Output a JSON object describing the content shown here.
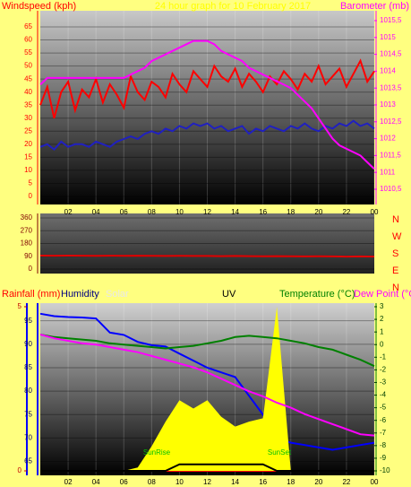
{
  "chart_data": [
    {
      "type": "line",
      "title": "24 hour graph for 10 February 2017",
      "ylabel": "Windspeed (kph)",
      "y2label": "Barometer (mb)",
      "xlim": [
        0,
        24
      ],
      "xticks": [
        {
          "value": 2,
          "label": "02"
        },
        {
          "value": 4,
          "label": "04"
        },
        {
          "value": 6,
          "label": "06"
        },
        {
          "value": 8,
          "label": "08"
        },
        10,
        12,
        14,
        16,
        18,
        20,
        22,
        {
          "value": 24,
          "label": "00"
        }
      ],
      "ylim": [
        0,
        65
      ],
      "yticks": [
        0,
        5,
        10,
        15,
        20,
        25,
        30,
        35,
        40,
        45,
        50,
        55,
        60,
        65
      ],
      "y2lim": [
        1010.5,
        1015.5
      ],
      "y2ticks": [
        {
          "value": 1010.5,
          "label": "1010,5"
        },
        1011,
        {
          "value": 1011.5,
          "label": "1011,5"
        },
        1012,
        {
          "value": 1012.5,
          "label": "1012,5"
        },
        1013,
        {
          "value": 1013.5,
          "label": "1013,5"
        },
        1014,
        {
          "value": 1014.5,
          "label": "1014,5"
        },
        1015,
        {
          "value": 1015.5,
          "label": "1015,5"
        }
      ],
      "x": [
        0,
        0.5,
        1,
        1.5,
        2,
        2.5,
        3,
        3.5,
        4,
        4.5,
        5,
        5.5,
        6,
        6.5,
        7,
        7.5,
        8,
        8.5,
        9,
        9.5,
        10,
        10.5,
        11,
        11.5,
        12,
        12.5,
        13,
        13.5,
        14,
        14.5,
        15,
        15.5,
        16,
        16.5,
        17,
        17.5,
        18,
        18.5,
        19,
        19.5,
        20,
        20.5,
        21,
        21.5,
        22,
        22.5,
        23,
        23.5,
        24
      ],
      "series": [
        {
          "color": "#ff0000",
          "axis": "y",
          "values": [
            35,
            42,
            30,
            40,
            44,
            33,
            41,
            38,
            45,
            36,
            43,
            39,
            34,
            46,
            40,
            37,
            44,
            42,
            38,
            47,
            43,
            40,
            48,
            45,
            42,
            50,
            46,
            44,
            49,
            42,
            47,
            44,
            40,
            46,
            43,
            48,
            45,
            41,
            47,
            44,
            50,
            43,
            46,
            49,
            42,
            47,
            52,
            44,
            48
          ]
        },
        {
          "color": "#2020c0",
          "axis": "y",
          "values": [
            19,
            20,
            18,
            21,
            19,
            20,
            20,
            19,
            21,
            20,
            19,
            21,
            22,
            23,
            22,
            24,
            25,
            24,
            26,
            25,
            27,
            26,
            28,
            27,
            28,
            26,
            27,
            25,
            26,
            27,
            24,
            26,
            25,
            27,
            26,
            25,
            27,
            26,
            28,
            26,
            25,
            27,
            26,
            28,
            27,
            29,
            27,
            28,
            26
          ]
        },
        {
          "color": "#ff00ff",
          "axis": "y2",
          "values": [
            1013.6,
            1013.8,
            1013.8,
            1013.8,
            1013.8,
            1013.8,
            1013.8,
            1013.8,
            1013.8,
            1013.8,
            1013.8,
            1013.8,
            1013.8,
            1013.9,
            1014,
            1014.1,
            1014.3,
            1014.4,
            1014.5,
            1014.6,
            1014.7,
            1014.8,
            1014.9,
            1014.9,
            1014.9,
            1014.8,
            1014.6,
            1014.5,
            1014.4,
            1014.3,
            1014.1,
            1014,
            1013.9,
            1013.8,
            1013.7,
            1013.6,
            1013.5,
            1013.3,
            1013.1,
            1012.9,
            1012.6,
            1012.3,
            1012,
            1011.8,
            1011.7,
            1011.6,
            1011.5,
            1011.3,
            1011.1
          ]
        }
      ]
    },
    {
      "type": "line",
      "xlim": [
        0,
        24
      ],
      "ylim": [
        0,
        360
      ],
      "yticks": [
        0,
        90,
        180,
        270,
        360
      ],
      "direction_labels": [
        "N",
        "W",
        "S",
        "E",
        "N"
      ],
      "x": [
        0,
        1,
        2,
        3,
        4,
        5,
        6,
        7,
        8,
        9,
        10,
        11,
        12,
        13,
        14,
        15,
        16,
        17,
        18,
        19,
        20,
        21,
        22,
        23,
        24
      ],
      "series": [
        {
          "color": "#e00000",
          "axis": "y",
          "values": [
            95,
            94,
            95,
            94,
            93,
            94,
            93,
            94,
            93,
            92,
            93,
            92,
            92,
            91,
            92,
            91,
            90,
            91,
            90,
            89,
            90,
            89,
            88,
            89,
            88
          ]
        }
      ]
    },
    {
      "type": "line",
      "xlim": [
        0,
        24
      ],
      "xticks": [
        {
          "value": 2,
          "label": "02"
        },
        {
          "value": 4,
          "label": "04"
        },
        {
          "value": 6,
          "label": "06"
        },
        {
          "value": 8,
          "label": "08"
        },
        10,
        12,
        14,
        16,
        18,
        20,
        22,
        {
          "value": 24,
          "label": "00"
        }
      ],
      "ylim": [
        63,
        98
      ],
      "yticks": [
        65,
        70,
        75,
        80,
        85,
        90,
        95
      ],
      "y2lim": [
        -10,
        3
      ],
      "y2ticks": [
        -10,
        -9,
        -8,
        -7,
        -6,
        -5,
        -4,
        -3,
        -2,
        -1,
        0,
        1,
        2,
        3
      ],
      "rainlim": [
        0,
        5
      ],
      "rainticks": [
        0,
        5
      ],
      "solarlim": [
        0,
        1000
      ],
      "uvlim": [
        0,
        10
      ],
      "annotations": [
        "SunRise",
        "SunSet"
      ],
      "x": [
        0,
        1,
        2,
        3,
        4,
        5,
        6,
        7,
        8,
        9,
        10,
        11,
        12,
        13,
        14,
        15,
        16,
        17,
        18,
        19,
        20,
        21,
        22,
        23,
        24
      ],
      "series": [
        {
          "name": "Rainfall (mm)",
          "color": "#ff0000",
          "axis": "rain",
          "values": [
            0,
            0,
            0,
            0,
            0,
            0,
            0,
            0,
            0,
            0,
            0,
            0,
            0,
            0,
            0,
            0,
            0,
            0,
            0,
            0,
            0,
            0,
            0,
            0,
            0
          ]
        },
        {
          "name": "Humidity",
          "color": "#0000ff",
          "axis": "y",
          "values": [
            96.5,
            96,
            95.8,
            95.7,
            95.5,
            92.5,
            92,
            90.5,
            89.8,
            89.5,
            88,
            86.5,
            85,
            84,
            83,
            79,
            75,
            70,
            69,
            68.5,
            68,
            67.5,
            68,
            68.5,
            69
          ]
        },
        {
          "name": "Solar",
          "color": "#ffff00",
          "axis": "solar",
          "kind": "area",
          "values": [
            0,
            0,
            0,
            0,
            0,
            0,
            0,
            20,
            150,
            300,
            430,
            380,
            430,
            330,
            270,
            300,
            320,
            1000,
            0,
            0,
            0,
            0,
            0,
            0,
            0
          ]
        },
        {
          "name": "UV",
          "color": "#000000",
          "axis": "uv",
          "values": [
            0,
            0,
            0,
            0,
            0,
            0,
            0,
            0,
            0,
            0,
            0.4,
            0.4,
            0.4,
            0.4,
            0.4,
            0.4,
            0.4,
            0,
            0,
            0,
            0,
            0,
            0,
            0,
            0
          ]
        },
        {
          "name": "Temperature (°C)",
          "color": "#008000",
          "axis": "y2",
          "values": [
            0.8,
            0.6,
            0.5,
            0.4,
            0.3,
            0.1,
            0,
            -0.1,
            -0.2,
            -0.3,
            -0.2,
            -0.1,
            0.1,
            0.3,
            0.6,
            0.7,
            0.6,
            0.5,
            0.3,
            0.1,
            -0.2,
            -0.4,
            -0.8,
            -1.2,
            -1.7
          ]
        },
        {
          "name": "Dew Point (°C)",
          "color": "#ff00ff",
          "axis": "y2",
          "values": [
            0.8,
            0.5,
            0.3,
            0.1,
            0,
            -0.2,
            -0.4,
            -0.6,
            -0.9,
            -1.2,
            -1.5,
            -1.8,
            -2.2,
            -2.7,
            -3.2,
            -3.7,
            -4.1,
            -4.6,
            -5,
            -5.5,
            -5.9,
            -6.3,
            -6.7,
            -7.1,
            -7.2
          ]
        }
      ]
    }
  ]
}
